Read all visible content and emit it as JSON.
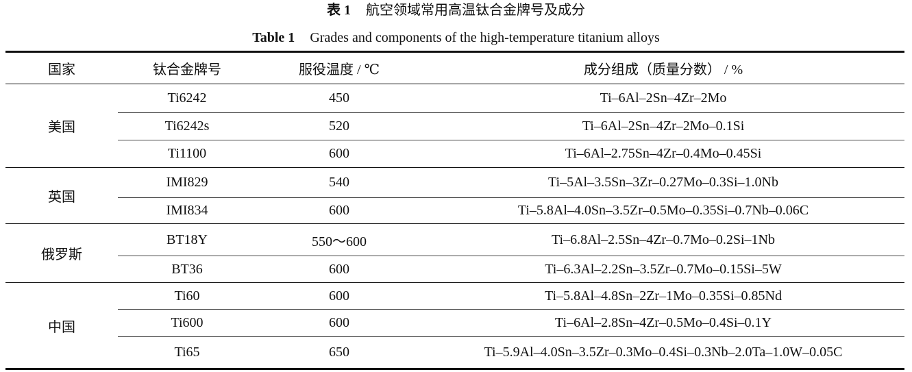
{
  "caption_cn": {
    "label": "表 1",
    "title": "航空领域常用高温钛合金牌号及成分"
  },
  "caption_en": {
    "label": "Table 1",
    "title": "Grades and components of the high-temperature titanium alloys"
  },
  "headers": [
    "国家",
    "钛合金牌号",
    "服役温度 / ℃",
    "成分组成（质量分数） / %"
  ],
  "groups": [
    {
      "country": "美国",
      "rows": [
        {
          "grade": "Ti6242",
          "temp": "450",
          "composition": "Ti–6Al–2Sn–4Zr–2Mo"
        },
        {
          "grade": "Ti6242s",
          "temp": "520",
          "composition": "Ti–6Al–2Sn–4Zr–2Mo–0.1Si"
        },
        {
          "grade": "Ti1100",
          "temp": "600",
          "composition": "Ti–6Al–2.75Sn–4Zr–0.4Mo–0.45Si"
        }
      ]
    },
    {
      "country": "英国",
      "rows": [
        {
          "grade": "IMI829",
          "temp": "540",
          "composition": "Ti–5Al–3.5Sn–3Zr–0.27Mo–0.3Si–1.0Nb"
        },
        {
          "grade": "IMI834",
          "temp": "600",
          "composition": "Ti–5.8Al–4.0Sn–3.5Zr–0.5Mo–0.35Si–0.7Nb–0.06C"
        }
      ]
    },
    {
      "country": "俄罗斯",
      "rows": [
        {
          "grade": "BT18Y",
          "temp": "550～600",
          "composition": "Ti–6.8Al–2.5Sn–4Zr–0.7Mo–0.2Si–1Nb"
        },
        {
          "grade": "BT36",
          "temp": "600",
          "composition": "Ti–6.3Al–2.2Sn–3.5Zr–0.7Mo–0.15Si–5W"
        }
      ]
    },
    {
      "country": "中国",
      "rows": [
        {
          "grade": "Ti60",
          "temp": "600",
          "composition": "Ti–5.8Al–4.8Sn–2Zr–1Mo–0.35Si–0.85Nd"
        },
        {
          "grade": "Ti600",
          "temp": "600",
          "composition": "Ti–6Al–2.8Sn–4Zr–0.5Mo–0.4Si–0.1Y"
        },
        {
          "grade": "Ti65",
          "temp": "650",
          "composition": "Ti–5.9Al–4.0Sn–3.5Zr–0.3Mo–0.4Si–0.3Nb–2.0Ta–1.0W–0.05C"
        }
      ]
    }
  ]
}
